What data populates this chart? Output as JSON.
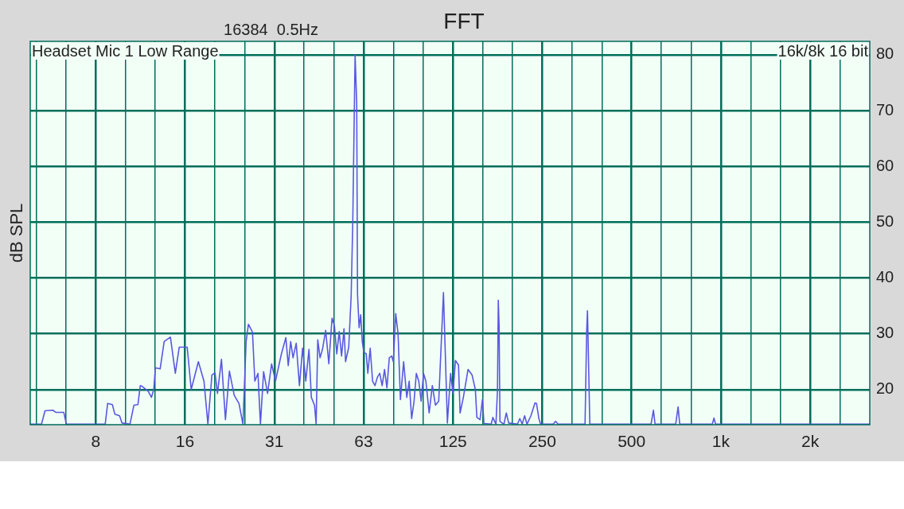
{
  "chart_data": {
    "type": "line",
    "title": "FFT",
    "subtitle": "16384  0.5Hz",
    "ylabel": "dB SPL",
    "annotations": [
      "Headset Mic 1 Low Range",
      "16k/8k 16 bit"
    ],
    "log": "x",
    "grid": true,
    "marker": "none",
    "line_style": "solid",
    "xlim": [
      4.7,
      3175
    ],
    "ylim": [
      13.7,
      82.4
    ],
    "xticks": [
      {
        "value": 4.921,
        "label": null
      },
      {
        "value": 6.201,
        "label": null
      },
      {
        "value": 7.8125,
        "label": "8"
      },
      {
        "value": 9.843,
        "label": null
      },
      {
        "value": 12.402,
        "label": null
      },
      {
        "value": 15.625,
        "label": "16"
      },
      {
        "value": 19.686,
        "label": null
      },
      {
        "value": 24.803,
        "label": null
      },
      {
        "value": 31.25,
        "label": "31"
      },
      {
        "value": 39.373,
        "label": null
      },
      {
        "value": 49.606,
        "label": null
      },
      {
        "value": 62.5,
        "label": "63"
      },
      {
        "value": 78.745,
        "label": null
      },
      {
        "value": 99.213,
        "label": null
      },
      {
        "value": 125,
        "label": "125"
      },
      {
        "value": 157.49,
        "label": null
      },
      {
        "value": 198.43,
        "label": null
      },
      {
        "value": 250,
        "label": "250"
      },
      {
        "value": 314.98,
        "label": null
      },
      {
        "value": 396.85,
        "label": null
      },
      {
        "value": 500,
        "label": "500"
      },
      {
        "value": 629.96,
        "label": null
      },
      {
        "value": 793.7,
        "label": null
      },
      {
        "value": 1000,
        "label": "1k"
      },
      {
        "value": 1259.9,
        "label": null
      },
      {
        "value": 1587.4,
        "label": null
      },
      {
        "value": 2000,
        "label": "2k"
      },
      {
        "value": 2519.8,
        "label": null
      }
    ],
    "yticks": [
      20,
      30,
      40,
      50,
      60,
      70,
      80
    ],
    "series": [
      {
        "color": "#5858e0",
        "x": [
          4.7,
          5.13,
          5.27,
          5.6,
          5.74,
          6.1,
          6.22,
          8.41,
          8.57,
          8.89,
          9.06,
          9.4,
          9.58,
          10.19,
          10.51,
          10.84,
          11.04,
          11.18,
          11.74,
          12.04,
          12.26,
          12.41,
          12.88,
          13.29,
          13.95,
          14.49,
          14.94,
          15.89,
          16.39,
          17.33,
          18.1,
          18.66,
          19.25,
          19.72,
          20.1,
          20.73,
          21.38,
          22.05,
          22.88,
          23.75,
          24.49,
          25.1,
          25.56,
          26.37,
          26.86,
          27.52,
          28.05,
          28.75,
          29.65,
          30.59,
          31.53,
          32.94,
          34.17,
          34.81,
          35.47,
          36.13,
          37.03,
          37.97,
          38.91,
          39.88,
          40.89,
          41.64,
          42.69,
          43.22,
          43.77,
          44.56,
          45.4,
          46.54,
          47.7,
          48.9,
          49.82,
          50.73,
          51.69,
          52.66,
          53.66,
          54.31,
          55.67,
          56.72,
          57.43,
          58.48,
          59.22,
          59.59,
          60.33,
          61.08,
          61.83,
          62.58,
          63.77,
          64.56,
          65.75,
          66.98,
          68.24,
          69.52,
          70.8,
          72.14,
          73.49,
          74.88,
          76.26,
          77.69,
          78.67,
          80.16,
          81.64,
          83.13,
          85.24,
          87.34,
          88.98,
          90.7,
          92.42,
          94.06,
          95.86,
          97.66,
          99.45,
          101.3,
          103.9,
          106.5,
          109.1,
          111.9,
          116.1,
          119.7,
          122.7,
          125,
          127.4,
          130.5,
          132.1,
          135.5,
          140.5,
          145,
          148.7,
          150.5,
          154.2,
          157.1,
          159,
          168.2,
          170.3,
          174.5,
          176.6,
          177.7,
          178.8,
          180,
          185.6,
          189.1,
          192.6,
          206.2,
          210,
          213.9,
          218,
          222,
          228.9,
          236.2,
          239.1,
          243.5,
          246.6,
          272.1,
          277.2,
          282.4,
          348.4,
          352.8,
          355,
          357,
          361.5,
          581.5,
          592.4,
          599.8,
          704.1,
          717.3,
          726.4,
          935.7,
          947.4,
          959.3,
          3175
        ],
        "values": [
          13.8,
          13.8,
          16.2,
          16.3,
          15.9,
          15.9,
          13.8,
          13.8,
          17.5,
          17.3,
          15.6,
          15.3,
          14,
          13.8,
          17.2,
          17.3,
          20.7,
          20.6,
          19.7,
          18.6,
          20,
          23.9,
          23.7,
          28.6,
          29.4,
          22.9,
          27.6,
          27.6,
          20,
          25,
          21.5,
          13.8,
          22.6,
          23,
          19.3,
          25.4,
          14.6,
          23.3,
          19,
          17.5,
          13.8,
          28.6,
          31.7,
          30.3,
          21.5,
          22.9,
          13.8,
          23.2,
          19.3,
          24.6,
          21.5,
          26.2,
          29.3,
          24.3,
          28.6,
          25.7,
          28.3,
          20.7,
          27.4,
          21.5,
          27.2,
          18.6,
          17.2,
          13.8,
          28.9,
          25.7,
          27.2,
          30.6,
          24.6,
          32.8,
          31.4,
          26.4,
          30.4,
          26,
          30.9,
          25,
          27.6,
          36.8,
          49.9,
          80,
          71.3,
          37.1,
          31.1,
          33.4,
          28.6,
          26.7,
          26.4,
          22.9,
          27.4,
          21.5,
          20.7,
          22.2,
          22.9,
          20.7,
          23.6,
          20.3,
          25.7,
          26,
          25,
          33.6,
          30,
          18.2,
          25,
          18.6,
          21.5,
          14.8,
          17.9,
          22.9,
          21.5,
          17.9,
          22.9,
          21.5,
          15.8,
          20.7,
          17.2,
          17.9,
          37.4,
          14,
          22.9,
          19.3,
          25.2,
          24.4,
          15.8,
          18.6,
          23.6,
          22.6,
          20,
          15,
          14.6,
          18.2,
          13.9,
          13.8,
          15,
          13.8,
          20,
          36,
          31.4,
          14.3,
          13.8,
          15.8,
          14,
          13.8,
          14.8,
          13.8,
          15.3,
          13.8,
          15.3,
          17.6,
          17.5,
          14.8,
          13.8,
          13.8,
          14.3,
          13.8,
          13.8,
          30.4,
          34.1,
          28.1,
          13.8,
          13.8,
          16.3,
          13.8,
          13.8,
          16.9,
          13.8,
          13.8,
          14.9,
          13.8,
          13.8
        ]
      }
    ]
  }
}
